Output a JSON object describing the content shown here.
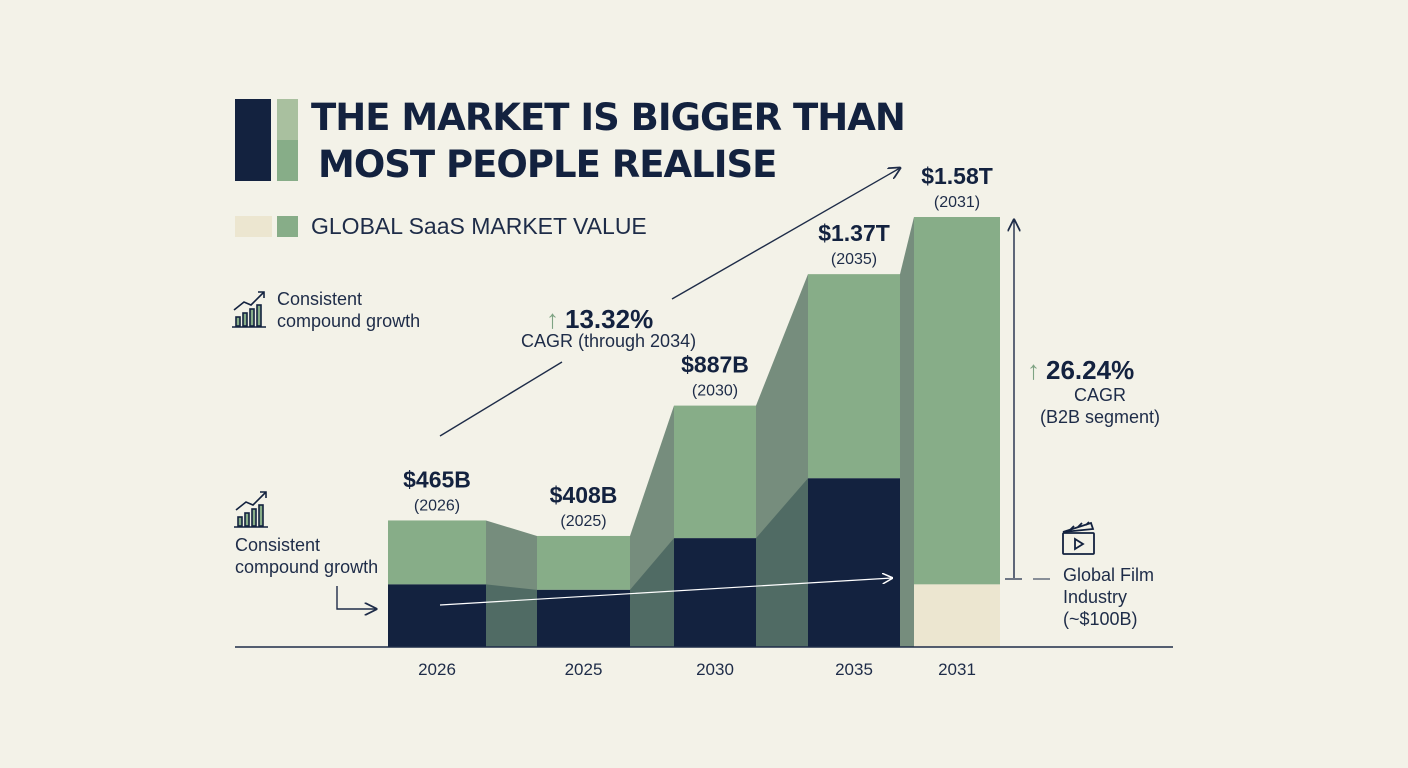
{
  "title": {
    "line1": "THE MARKET IS BIGGER THAN",
    "line2": "MOST PEOPLE REALISE"
  },
  "legend": {
    "label": "GLOBAL SaaS MARKET VALUE"
  },
  "notes": {
    "top": {
      "line1": "Consistent",
      "line2": "compound growth"
    },
    "bottom": {
      "line1": "Consistent",
      "line2": "compound growth"
    }
  },
  "cagr_main": {
    "value": "13.32%",
    "label": "CAGR (through 2034)"
  },
  "cagr_b2b": {
    "value": "26.24%",
    "label1": "CAGR",
    "label2": "(B2B segment)"
  },
  "film": {
    "line1": "Global Film",
    "line2": "Industry",
    "line3": "(~$100B)"
  },
  "colors": {
    "background": "#f3f2e8",
    "navy": "#13223f",
    "green": "#87ad88",
    "cream": "#ece6d0",
    "connector": "#5f7b6a"
  },
  "chart_data": {
    "type": "bar",
    "categories": [
      "2026",
      "2025",
      "2030",
      "2035",
      "2031"
    ],
    "values": [
      465,
      408,
      887,
      1370,
      1580
    ],
    "value_labels": [
      "$465B",
      "$408B",
      "$887B",
      "$1.37T",
      "$1.58T"
    ],
    "year_labels": [
      "(2026)",
      "(2025)",
      "(2030)",
      "(2035)",
      "(2031)"
    ],
    "lower_segment_values": [
      230,
      210,
      400,
      620,
      230
    ],
    "lower_segment_color": [
      "navy",
      "navy",
      "navy",
      "navy",
      "cream"
    ],
    "unit": "billion USD",
    "ylim": [
      0,
      1580
    ],
    "grid": false,
    "legend_position": "top-left"
  }
}
